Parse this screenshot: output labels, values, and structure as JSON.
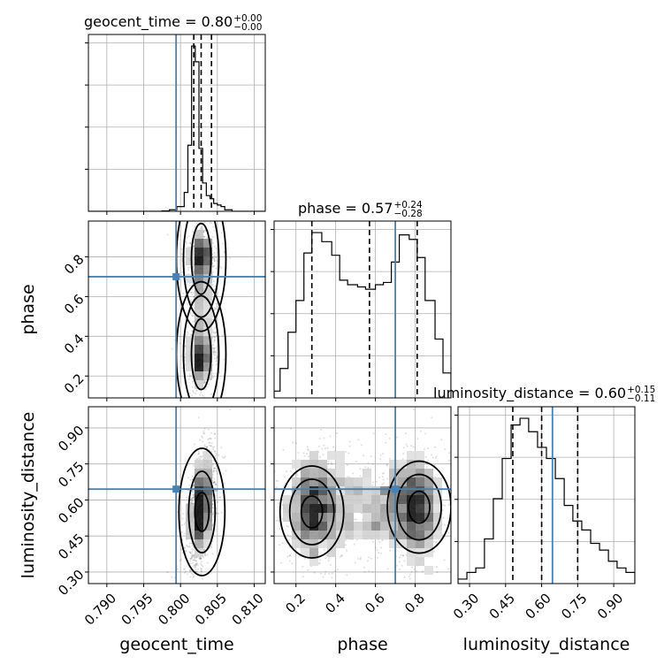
{
  "chart_data": {
    "type": "scatter",
    "variant": "corner-plot",
    "parameters": [
      "geocent_time",
      "phase",
      "luminosity_distance"
    ],
    "axis_labels": [
      "geocent_time",
      "phase",
      "luminosity_distance"
    ],
    "titles": [
      {
        "label": "geocent_time = 0.80",
        "plus": "+0.00",
        "minus": "−0.00"
      },
      {
        "label": "phase = 0.57",
        "plus": "+0.24",
        "minus": "−0.28"
      },
      {
        "label": "luminosity_distance = 0.60",
        "plus": "+0.15",
        "minus": "−0.11"
      }
    ],
    "ranges": [
      [
        0.7875,
        0.8115
      ],
      [
        0.09,
        0.98
      ],
      [
        0.252,
        0.988
      ]
    ],
    "ticks": [
      [
        0.79,
        0.795,
        0.8,
        0.805,
        0.81
      ],
      [
        0.2,
        0.4,
        0.6,
        0.8
      ],
      [
        0.3,
        0.45,
        0.6,
        0.75,
        0.9
      ]
    ],
    "tick_labels": [
      [
        "0.790",
        "0.795",
        "0.800",
        "0.805",
        "0.810"
      ],
      [
        "0.2",
        "0.4",
        "0.6",
        "0.8"
      ],
      [
        "0.30",
        "0.45",
        "0.60",
        "0.75",
        "0.90"
      ]
    ],
    "truths": [
      0.7994,
      0.7,
      0.645
    ],
    "quantiles": [
      [
        0.8018,
        0.8028,
        0.8042
      ],
      [
        0.28,
        0.57,
        0.81
      ],
      [
        0.48,
        0.6,
        0.75
      ]
    ],
    "histograms": [
      {
        "bin_edges": [
          0.7975,
          0.7985,
          0.7995,
          0.8005,
          0.801,
          0.8015,
          0.802,
          0.8025,
          0.803,
          0.8035,
          0.804,
          0.8045,
          0.805,
          0.8055,
          0.806,
          0.807
        ],
        "counts": [
          0.3,
          1,
          3,
          12,
          42,
          105,
          95,
          40,
          18,
          10,
          8,
          5,
          4,
          3,
          1
        ]
      },
      {
        "bin_edges": [
          0.09,
          0.12,
          0.16,
          0.2,
          0.24,
          0.28,
          0.33,
          0.38,
          0.42,
          0.46,
          0.51,
          0.55,
          0.6,
          0.64,
          0.68,
          0.72,
          0.77,
          0.81,
          0.85,
          0.9,
          0.94,
          0.98
        ],
        "counts": [
          3,
          13,
          29,
          43,
          64,
          73,
          69,
          63,
          52,
          50,
          49,
          48,
          50,
          51,
          60,
          72,
          70,
          62,
          43,
          26,
          11
        ]
      },
      {
        "bin_edges": [
          0.252,
          0.289,
          0.326,
          0.362,
          0.399,
          0.436,
          0.473,
          0.51,
          0.546,
          0.583,
          0.62,
          0.657,
          0.694,
          0.73,
          0.767,
          0.804,
          0.841,
          0.878,
          0.914,
          0.951,
          0.988
        ],
        "counts": [
          2,
          5,
          7,
          20,
          38,
          56,
          71,
          74,
          68,
          61,
          56,
          47,
          35,
          28,
          24,
          18,
          15,
          10,
          7,
          5
        ]
      }
    ],
    "density_modes": [
      {
        "pair": [
          "geocent_time",
          "phase"
        ],
        "peaks": [
          [
            0.8028,
            0.79
          ],
          [
            0.8028,
            0.31
          ]
        ]
      },
      {
        "pair": [
          "geocent_time",
          "luminosity_distance"
        ],
        "peaks": [
          [
            0.8029,
            0.55
          ]
        ]
      },
      {
        "pair": [
          "phase",
          "luminosity_distance"
        ],
        "peaks": [
          [
            0.28,
            0.55
          ],
          [
            0.82,
            0.57
          ]
        ]
      }
    ],
    "grid": true
  }
}
